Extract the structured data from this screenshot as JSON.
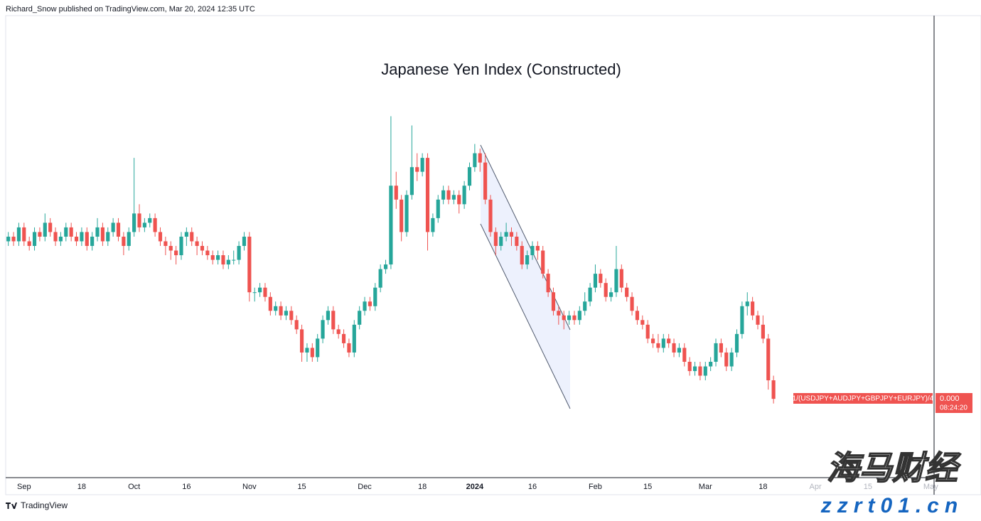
{
  "header": "Richard_Snow published on TradingView.com, Mar 20, 2024 12:35 UTC",
  "footer": "TradingView",
  "watermark": {
    "name": "海马财经",
    "site": "zzrt01.cn"
  },
  "chart_data": {
    "type": "candlestick",
    "title": "Japanese Yen Index (Constructed)",
    "ylim": [
      0,
      100
    ],
    "up_color": "#26a69a",
    "down_color": "#ef5350",
    "price_label": {
      "symbol": "1/(USDJPY+AUDJPY+GBPJPY+EURJPY)/4",
      "value": "0.000",
      "countdown": "08:24:20"
    },
    "categories": [
      null,
      null,
      null,
      "Sep",
      null,
      null,
      null,
      null,
      null,
      null,
      null,
      null,
      null,
      null,
      "18",
      null,
      null,
      null,
      null,
      null,
      null,
      null,
      null,
      null,
      "Oct",
      null,
      null,
      null,
      null,
      null,
      null,
      null,
      null,
      null,
      "16",
      null,
      null,
      null,
      null,
      null,
      null,
      null,
      null,
      null,
      null,
      null,
      "Nov",
      null,
      null,
      null,
      null,
      null,
      null,
      null,
      null,
      null,
      "15",
      null,
      null,
      null,
      null,
      null,
      null,
      null,
      null,
      null,
      null,
      null,
      "Dec",
      null,
      null,
      null,
      null,
      null,
      null,
      null,
      null,
      null,
      null,
      "18",
      null,
      null,
      null,
      null,
      null,
      null,
      null,
      null,
      null,
      "2024",
      null,
      null,
      null,
      null,
      null,
      null,
      null,
      null,
      null,
      null,
      "16",
      null,
      null,
      null,
      null,
      null,
      null,
      null,
      null,
      null,
      null,
      null,
      "Feb",
      null,
      null,
      null,
      null,
      null,
      null,
      null,
      null,
      null,
      "15",
      null,
      null,
      null,
      null,
      null,
      null,
      null,
      null,
      null,
      null,
      "Mar",
      null,
      null,
      null,
      null,
      null,
      null,
      null,
      null,
      null,
      null,
      "18",
      null,
      null,
      null,
      null,
      null,
      null,
      null,
      null,
      null,
      "Apr",
      null,
      null,
      null,
      null,
      null,
      null,
      null,
      null,
      null,
      "15",
      null,
      null,
      null,
      null,
      null,
      null,
      null,
      null,
      null,
      null,
      null,
      "May"
    ],
    "values": [
      [
        51,
        53,
        50,
        52
      ],
      [
        52,
        53,
        50,
        51
      ],
      [
        51,
        55,
        50,
        54
      ],
      [
        54,
        55,
        50,
        51
      ],
      [
        51,
        52,
        49,
        50
      ],
      [
        50,
        54,
        49,
        53
      ],
      [
        53,
        54,
        51,
        52
      ],
      [
        52,
        57,
        51,
        55
      ],
      [
        55,
        56,
        52,
        53
      ],
      [
        53,
        54,
        50,
        51
      ],
      [
        51,
        53,
        50,
        52
      ],
      [
        52,
        55,
        51,
        54
      ],
      [
        54,
        55,
        51,
        52
      ],
      [
        52,
        53,
        50,
        51
      ],
      [
        51,
        54,
        50,
        53
      ],
      [
        53,
        54,
        49,
        50
      ],
      [
        50,
        53,
        49,
        52
      ],
      [
        52,
        56,
        51,
        54
      ],
      [
        54,
        55,
        50,
        51
      ],
      [
        51,
        54,
        50,
        53
      ],
      [
        53,
        56,
        52,
        55
      ],
      [
        55,
        56,
        51,
        52
      ],
      [
        52,
        53,
        48,
        50
      ],
      [
        50,
        54,
        49,
        53
      ],
      [
        53,
        69,
        52,
        57
      ],
      [
        57,
        59,
        53,
        54
      ],
      [
        54,
        56,
        53,
        55
      ],
      [
        55,
        57,
        54,
        56
      ],
      [
        56,
        57,
        52,
        53
      ],
      [
        53,
        54,
        50,
        51
      ],
      [
        51,
        52,
        48,
        50
      ],
      [
        50,
        51,
        47,
        49
      ],
      [
        49,
        50,
        46,
        48
      ],
      [
        48,
        53,
        47,
        52
      ],
      [
        52,
        54,
        50,
        53
      ],
      [
        53,
        54,
        50,
        51
      ],
      [
        51,
        52,
        48,
        50
      ],
      [
        50,
        51,
        48,
        49
      ],
      [
        49,
        50,
        47,
        48
      ],
      [
        48,
        49,
        46,
        47
      ],
      [
        47,
        49,
        46,
        48
      ],
      [
        48,
        49,
        45,
        46
      ],
      [
        46,
        48,
        45,
        47
      ],
      [
        47,
        49,
        46,
        47
      ],
      [
        47,
        51,
        46,
        50
      ],
      [
        50,
        53,
        49,
        52
      ],
      [
        52,
        53,
        38,
        40
      ],
      [
        40,
        41,
        38,
        40
      ],
      [
        40,
        42,
        39,
        41
      ],
      [
        41,
        42,
        38,
        39
      ],
      [
        39,
        40,
        35,
        36
      ],
      [
        36,
        38,
        35,
        37
      ],
      [
        37,
        38,
        34,
        35
      ],
      [
        35,
        37,
        34,
        36
      ],
      [
        36,
        37,
        33,
        34
      ],
      [
        34,
        35,
        31,
        32
      ],
      [
        32,
        33,
        25,
        27
      ],
      [
        27,
        29,
        25,
        28
      ],
      [
        28,
        29,
        25,
        26
      ],
      [
        26,
        31,
        25,
        30
      ],
      [
        30,
        35,
        29,
        34
      ],
      [
        34,
        37,
        33,
        36
      ],
      [
        36,
        37,
        31,
        32
      ],
      [
        32,
        33,
        30,
        31
      ],
      [
        31,
        32,
        28,
        29
      ],
      [
        29,
        30,
        26,
        27
      ],
      [
        27,
        34,
        26,
        33
      ],
      [
        33,
        37,
        32,
        36
      ],
      [
        36,
        39,
        35,
        38
      ],
      [
        38,
        39,
        36,
        37
      ],
      [
        37,
        42,
        36,
        41
      ],
      [
        41,
        46,
        40,
        45
      ],
      [
        45,
        47,
        44,
        46
      ],
      [
        46,
        78,
        45,
        63
      ],
      [
        63,
        66,
        58,
        60
      ],
      [
        60,
        61,
        51,
        53
      ],
      [
        53,
        62,
        52,
        61
      ],
      [
        61,
        76,
        60,
        67
      ],
      [
        67,
        70,
        64,
        66
      ],
      [
        66,
        70,
        65,
        69
      ],
      [
        69,
        70,
        49,
        53
      ],
      [
        53,
        57,
        52,
        56
      ],
      [
        56,
        61,
        55,
        60
      ],
      [
        60,
        63,
        59,
        62
      ],
      [
        62,
        63,
        59,
        60
      ],
      [
        60,
        62,
        59,
        61
      ],
      [
        61,
        62,
        57,
        59
      ],
      [
        59,
        64,
        58,
        63
      ],
      [
        63,
        68,
        62,
        67
      ],
      [
        67,
        72,
        66,
        70
      ],
      [
        70,
        71,
        66,
        68
      ],
      [
        68,
        70,
        59,
        60
      ],
      [
        60,
        61,
        52,
        53
      ],
      [
        53,
        54,
        48,
        50
      ],
      [
        50,
        53,
        49,
        52
      ],
      [
        52,
        55,
        51,
        53
      ],
      [
        53,
        54,
        50,
        52
      ],
      [
        52,
        53,
        49,
        50
      ],
      [
        50,
        51,
        45,
        46
      ],
      [
        46,
        49,
        45,
        48
      ],
      [
        48,
        51,
        47,
        50
      ],
      [
        50,
        51,
        47,
        49
      ],
      [
        49,
        50,
        43,
        44
      ],
      [
        44,
        45,
        39,
        40
      ],
      [
        40,
        41,
        35,
        36
      ],
      [
        36,
        37,
        33,
        35
      ],
      [
        35,
        36,
        32,
        34
      ],
      [
        34,
        36,
        33,
        35
      ],
      [
        35,
        36,
        33,
        34
      ],
      [
        34,
        37,
        33,
        36
      ],
      [
        36,
        40,
        35,
        38
      ],
      [
        38,
        42,
        37,
        41
      ],
      [
        41,
        46,
        40,
        44
      ],
      [
        44,
        45,
        41,
        42
      ],
      [
        42,
        43,
        38,
        39
      ],
      [
        39,
        41,
        38,
        40
      ],
      [
        40,
        50,
        39,
        45
      ],
      [
        45,
        46,
        40,
        41
      ],
      [
        41,
        42,
        38,
        39
      ],
      [
        39,
        40,
        35,
        36
      ],
      [
        36,
        37,
        33,
        34
      ],
      [
        34,
        35,
        32,
        33
      ],
      [
        33,
        34,
        29,
        30
      ],
      [
        30,
        31,
        28,
        29
      ],
      [
        29,
        31,
        27,
        28
      ],
      [
        28,
        31,
        27,
        30
      ],
      [
        30,
        31,
        28,
        29
      ],
      [
        29,
        30,
        26,
        27
      ],
      [
        27,
        29,
        26,
        28
      ],
      [
        28,
        29,
        24,
        25
      ],
      [
        25,
        26,
        22,
        23
      ],
      [
        23,
        25,
        22,
        24
      ],
      [
        24,
        25,
        21,
        22
      ],
      [
        22,
        25,
        21,
        24
      ],
      [
        24,
        26,
        23,
        25
      ],
      [
        25,
        30,
        24,
        29
      ],
      [
        29,
        30,
        26,
        27
      ],
      [
        27,
        28,
        23,
        24
      ],
      [
        24,
        28,
        23,
        27
      ],
      [
        27,
        32,
        26,
        31
      ],
      [
        31,
        38,
        30,
        37
      ],
      [
        37,
        40,
        35,
        38
      ],
      [
        38,
        39,
        34,
        35
      ],
      [
        35,
        36,
        32,
        33
      ],
      [
        33,
        35,
        29,
        30
      ],
      [
        30,
        31,
        19,
        21
      ],
      [
        21,
        22,
        16,
        17
      ],
      null,
      null,
      null,
      null,
      null,
      null,
      null,
      null,
      null,
      null,
      null,
      null,
      null,
      null,
      null,
      null,
      null,
      null,
      null,
      null,
      null,
      null,
      null,
      null,
      null,
      null,
      null,
      null,
      null,
      null
    ]
  }
}
